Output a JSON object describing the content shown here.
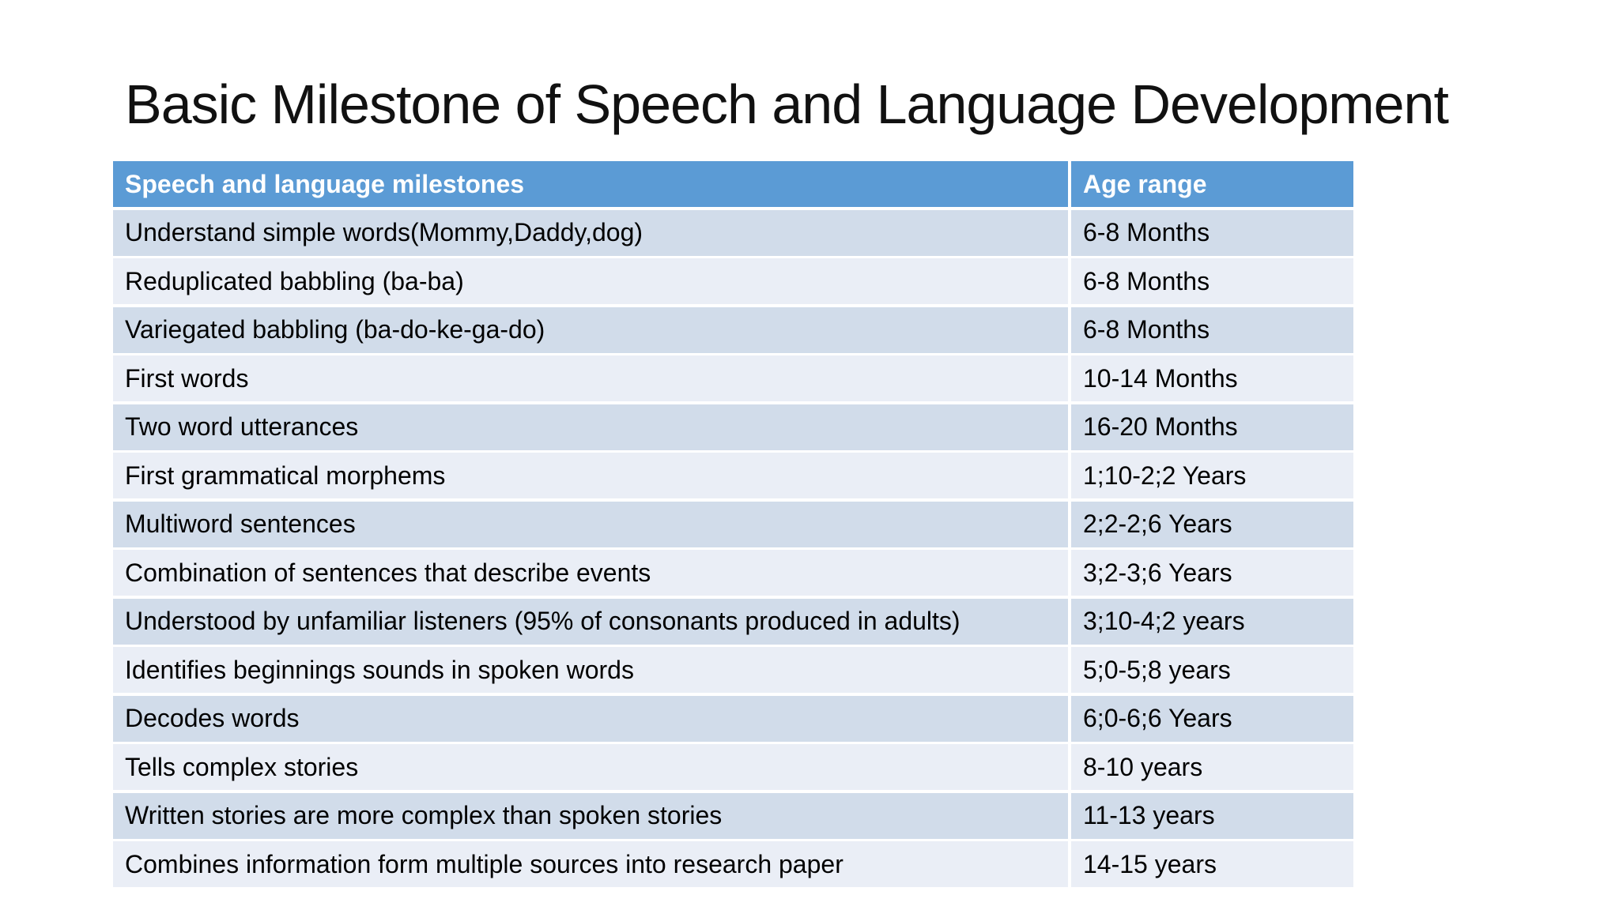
{
  "slide": {
    "title": "Basic Milestone of Speech and Language Development"
  },
  "table": {
    "columns": [
      {
        "label": "Speech and language milestones"
      },
      {
        "label": "Age range"
      }
    ],
    "rows": [
      {
        "milestone": "Understand simple words(Mommy,Daddy,dog)",
        "age_range": "6-8 Months"
      },
      {
        "milestone": "Reduplicated babbling (ba-ba)",
        "age_range": "6-8 Months"
      },
      {
        "milestone": "Variegated babbling (ba-do-ke-ga-do)",
        "age_range": "6-8 Months"
      },
      {
        "milestone": "First words",
        "age_range": "10-14 Months"
      },
      {
        "milestone": "Two word utterances",
        "age_range": "16-20 Months"
      },
      {
        "milestone": "First grammatical morphems",
        "age_range": "1;10-2;2 Years"
      },
      {
        "milestone": "Multiword sentences",
        "age_range": "2;2-2;6 Years"
      },
      {
        "milestone": "Combination of sentences that describe events",
        "age_range": "3;2-3;6 Years"
      },
      {
        "milestone": "Understood by unfamiliar listeners (95% of consonants produced in adults)",
        "age_range": "3;10-4;2 years"
      },
      {
        "milestone": "Identifies beginnings sounds in spoken words",
        "age_range": "5;0-5;8 years"
      },
      {
        "milestone": "Decodes words",
        "age_range": "6;0-6;6 Years"
      },
      {
        "milestone": "Tells complex stories",
        "age_range": "8-10 years"
      },
      {
        "milestone": "Written stories are more complex than spoken stories",
        "age_range": "11-13 years"
      },
      {
        "milestone": "Combines information form multiple sources into research paper",
        "age_range": "14-15 years"
      }
    ]
  },
  "colors": {
    "background": "#FFFFFF",
    "header_fill": "#5B9BD5",
    "header_text": "#FFFFFF",
    "band_dark": "#D1DCEA",
    "band_light": "#EAEEF6",
    "divider": "#FFFFFF",
    "body_text": "#000000",
    "title_text": "#111111"
  }
}
